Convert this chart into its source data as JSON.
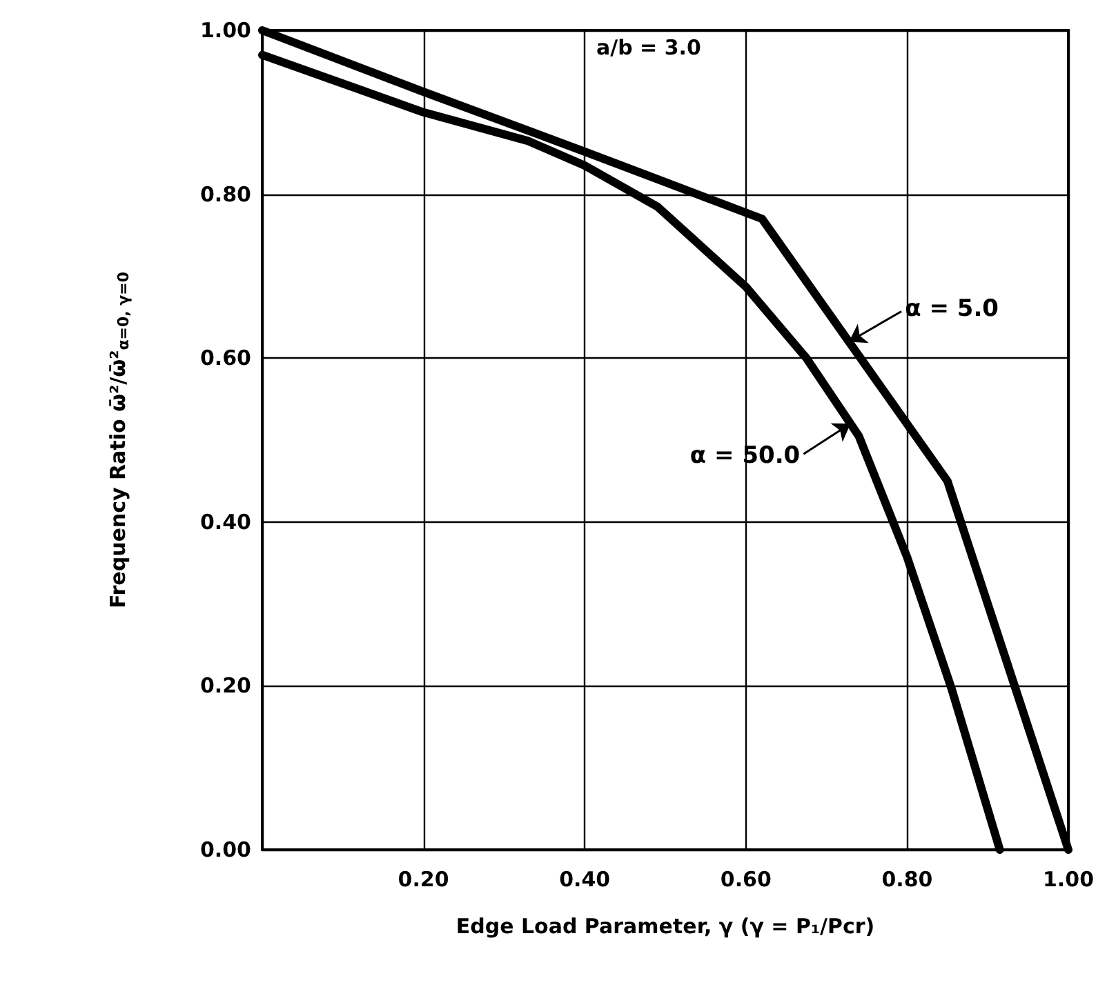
{
  "chart_data": {
    "type": "line",
    "xlabel": "Edge Load Parameter, γ (γ = P₁/Pcr)",
    "ylabel": "Frequency Ratio ω̄²/ω̄²$_{α=0, γ=0}$",
    "annotations": [
      "a/b = 3.0"
    ],
    "series": [
      {
        "name": "α = 5.0",
        "color": "#000000",
        "x": [
          0,
          0.2,
          0.4,
          0.62,
          0.85,
          1.0
        ],
        "values": [
          1.0,
          0.925,
          0.852,
          0.77,
          0.45,
          0
        ]
      },
      {
        "name": "α = 50.0",
        "color": "#000000",
        "x": [
          0,
          0.2,
          0.33,
          0.4,
          0.49,
          0.6,
          0.675,
          0.74,
          0.8,
          0.855,
          0.915
        ],
        "values": [
          0.97,
          0.9,
          0.865,
          0.835,
          0.785,
          0.687,
          0.6,
          0.505,
          0.357,
          0.197,
          0
        ]
      }
    ],
    "xlim": [
      0,
      1.0
    ],
    "xticks": [
      {
        "value": 0,
        "label": null
      },
      {
        "value": 0.2,
        "label": "0.20"
      },
      {
        "value": 0.4,
        "label": "0.40"
      },
      {
        "value": 0.6,
        "label": "0.60"
      },
      {
        "value": 0.8,
        "label": "0.80"
      },
      {
        "value": 1.0,
        "label": "1.00"
      }
    ],
    "ylim": [
      0,
      1.0
    ],
    "yticks": [
      {
        "value": 0,
        "label": "0.00"
      },
      {
        "value": 0.2,
        "label": "0.20"
      },
      {
        "value": 0.4,
        "label": "0.40"
      },
      {
        "value": 0.6,
        "label": "0.60"
      },
      {
        "value": 0.8,
        "label": "0.80"
      },
      {
        "value": 1.0,
        "label": "1.00"
      }
    ],
    "grid": true,
    "marker": "none",
    "line_style": "solid",
    "legend": false
  }
}
